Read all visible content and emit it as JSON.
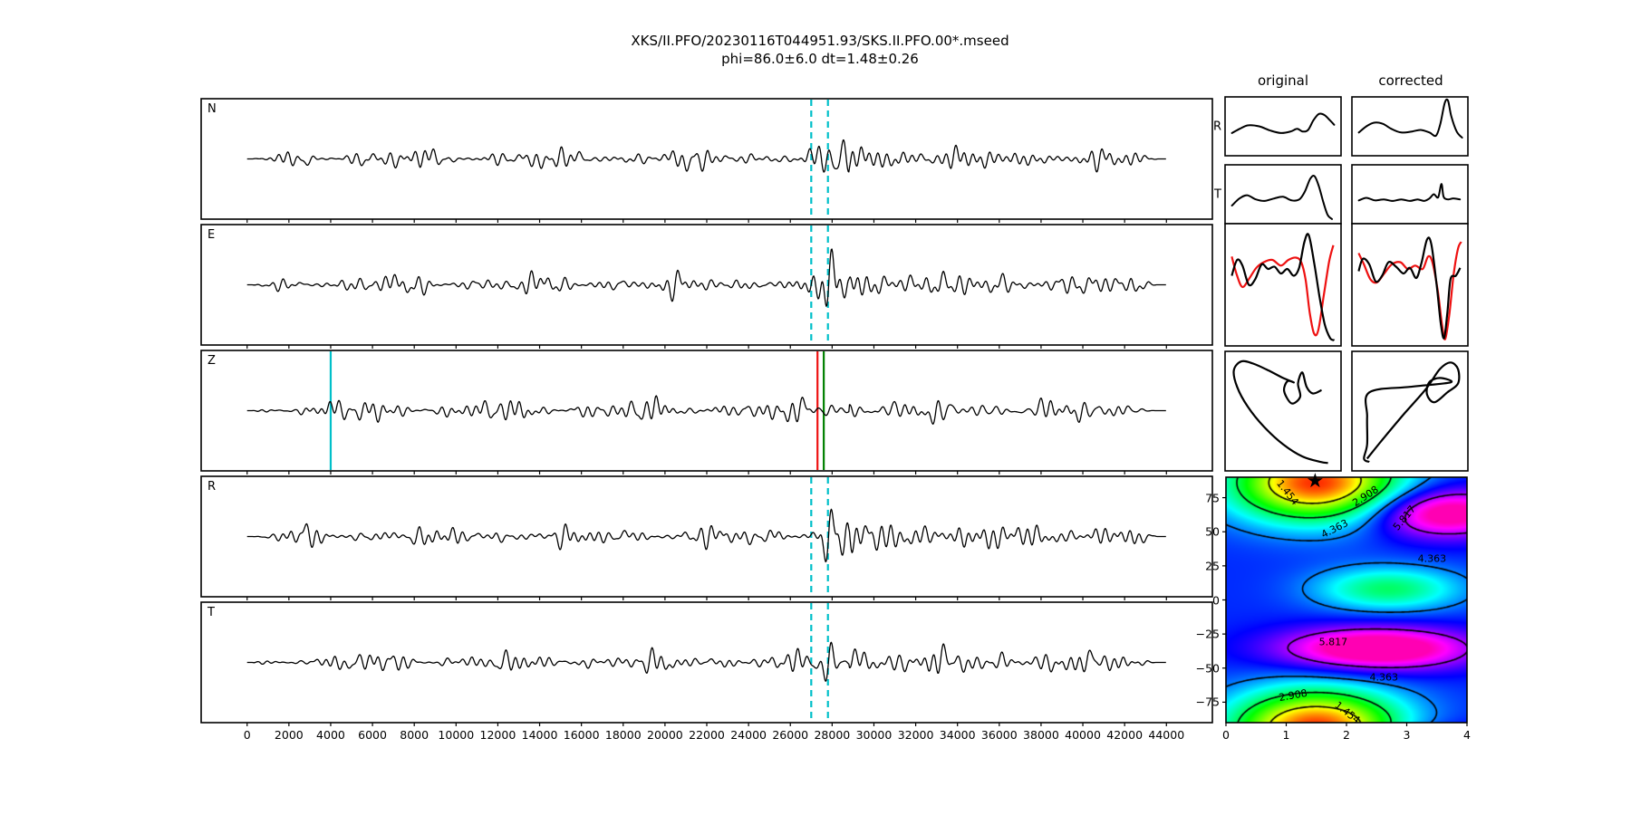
{
  "figure": {
    "title_line1": "XKS/II.PFO/20230116T044951.93/SKS.II.PFO.00*.mseed",
    "title_line2": "phi=86.0±6.0 dt=1.48±0.26",
    "background": "#ffffff"
  },
  "colors": {
    "trace": "#000000",
    "frame": "#000000",
    "cyan": "#00bfc9",
    "red": "#ee1111",
    "green": "#008000",
    "text": "#000000"
  },
  "chart_data": [
    {
      "type": "line",
      "id": "waveforms",
      "x_range": [
        0,
        44000
      ],
      "x_view": [
        -2200,
        46200
      ],
      "x_ticks": [
        0,
        2000,
        4000,
        6000,
        8000,
        10000,
        12000,
        14000,
        16000,
        18000,
        20000,
        22000,
        24000,
        26000,
        28000,
        30000,
        32000,
        34000,
        36000,
        38000,
        40000,
        42000,
        44000
      ],
      "grid": false,
      "panels": [
        {
          "label": "N",
          "seed": 11,
          "amp": {
            "base": 8,
            "burst": 9,
            "wavelet": 14,
            "coda": 5
          },
          "marker_lines": [
            {
              "x": 27000,
              "color": "cyan",
              "style": "dashed"
            },
            {
              "x": 27800,
              "color": "cyan",
              "style": "dashed"
            }
          ]
        },
        {
          "label": "E",
          "seed": 23,
          "amp": {
            "base": 8,
            "burst": 10,
            "wavelet": 40,
            "coda": 6
          },
          "marker_lines": [
            {
              "x": 27000,
              "color": "cyan",
              "style": "dashed"
            },
            {
              "x": 27800,
              "color": "cyan",
              "style": "dashed"
            }
          ]
        },
        {
          "label": "Z",
          "seed": 37,
          "amp": {
            "base": 9,
            "burst": 5,
            "wavelet": 9,
            "coda": 3
          },
          "marker_lines": [
            {
              "x": 4000,
              "color": "cyan",
              "style": "solid"
            },
            {
              "x": 27300,
              "color": "red",
              "style": "solid"
            },
            {
              "x": 27600,
              "color": "green",
              "style": "solid"
            }
          ]
        },
        {
          "label": "R",
          "seed": 51,
          "amp": {
            "base": 8,
            "burst": 10,
            "wavelet": 34,
            "coda": 6
          },
          "marker_lines": [
            {
              "x": 27000,
              "color": "cyan",
              "style": "dashed"
            },
            {
              "x": 27800,
              "color": "cyan",
              "style": "dashed"
            }
          ]
        },
        {
          "label": "T",
          "seed": 67,
          "amp": {
            "base": 8,
            "burst": 9,
            "wavelet": 24,
            "coda": 5
          },
          "show_x_labels": true,
          "marker_lines": [
            {
              "x": 27000,
              "color": "cyan",
              "style": "dashed"
            },
            {
              "x": 27800,
              "color": "cyan",
              "style": "dashed"
            }
          ]
        }
      ]
    },
    {
      "type": "line",
      "id": "pulse_panels",
      "columns": [
        "original",
        "corrected"
      ],
      "rows": [
        {
          "label": "R",
          "original": [
            [
              0.03,
              0.63
            ],
            [
              0.1,
              0.55
            ],
            [
              0.18,
              0.48
            ],
            [
              0.28,
              0.5
            ],
            [
              0.38,
              0.58
            ],
            [
              0.48,
              0.63
            ],
            [
              0.57,
              0.6
            ],
            [
              0.63,
              0.55
            ],
            [
              0.68,
              0.6
            ],
            [
              0.73,
              0.57
            ],
            [
              0.78,
              0.38
            ],
            [
              0.83,
              0.26
            ],
            [
              0.88,
              0.28
            ],
            [
              0.93,
              0.38
            ],
            [
              0.97,
              0.47
            ]
          ],
          "corrected": [
            [
              0.03,
              0.62
            ],
            [
              0.1,
              0.5
            ],
            [
              0.17,
              0.43
            ],
            [
              0.25,
              0.45
            ],
            [
              0.33,
              0.55
            ],
            [
              0.42,
              0.62
            ],
            [
              0.52,
              0.6
            ],
            [
              0.6,
              0.57
            ],
            [
              0.68,
              0.62
            ],
            [
              0.74,
              0.68
            ],
            [
              0.78,
              0.45
            ],
            [
              0.82,
              0.05
            ],
            [
              0.85,
              0.0
            ],
            [
              0.88,
              0.3
            ],
            [
              0.93,
              0.6
            ],
            [
              0.98,
              0.72
            ]
          ]
        },
        {
          "label": "T",
          "original": [
            [
              0.03,
              0.72
            ],
            [
              0.1,
              0.58
            ],
            [
              0.17,
              0.52
            ],
            [
              0.25,
              0.6
            ],
            [
              0.33,
              0.63
            ],
            [
              0.42,
              0.58
            ],
            [
              0.5,
              0.55
            ],
            [
              0.58,
              0.62
            ],
            [
              0.65,
              0.6
            ],
            [
              0.7,
              0.45
            ],
            [
              0.75,
              0.2
            ],
            [
              0.79,
              0.15
            ],
            [
              0.83,
              0.35
            ],
            [
              0.87,
              0.65
            ],
            [
              0.91,
              0.9
            ],
            [
              0.95,
              0.98
            ]
          ],
          "corrected": [
            [
              0.03,
              0.62
            ],
            [
              0.1,
              0.57
            ],
            [
              0.18,
              0.62
            ],
            [
              0.26,
              0.6
            ],
            [
              0.34,
              0.63
            ],
            [
              0.42,
              0.6
            ],
            [
              0.5,
              0.63
            ],
            [
              0.57,
              0.6
            ],
            [
              0.63,
              0.63
            ],
            [
              0.68,
              0.58
            ],
            [
              0.72,
              0.5
            ],
            [
              0.76,
              0.56
            ],
            [
              0.79,
              0.3
            ],
            [
              0.81,
              0.55
            ],
            [
              0.85,
              0.6
            ],
            [
              0.9,
              0.58
            ],
            [
              0.96,
              0.6
            ]
          ]
        }
      ]
    },
    {
      "type": "line",
      "id": "comparison_panels",
      "description": "fast (black) vs slow (red) component overlay, original and corrected",
      "original": {
        "black": [
          [
            0.02,
            0.42
          ],
          [
            0.07,
            0.28
          ],
          [
            0.12,
            0.33
          ],
          [
            0.18,
            0.5
          ],
          [
            0.24,
            0.45
          ],
          [
            0.3,
            0.32
          ],
          [
            0.36,
            0.36
          ],
          [
            0.42,
            0.34
          ],
          [
            0.48,
            0.4
          ],
          [
            0.54,
            0.36
          ],
          [
            0.6,
            0.42
          ],
          [
            0.65,
            0.35
          ],
          [
            0.7,
            0.12
          ],
          [
            0.74,
            0.06
          ],
          [
            0.79,
            0.3
          ],
          [
            0.84,
            0.6
          ],
          [
            0.89,
            0.85
          ],
          [
            0.94,
            0.97
          ],
          [
            0.98,
            0.99
          ]
        ],
        "red": [
          [
            0.02,
            0.25
          ],
          [
            0.07,
            0.42
          ],
          [
            0.12,
            0.52
          ],
          [
            0.18,
            0.45
          ],
          [
            0.25,
            0.35
          ],
          [
            0.32,
            0.3
          ],
          [
            0.4,
            0.28
          ],
          [
            0.48,
            0.33
          ],
          [
            0.55,
            0.28
          ],
          [
            0.62,
            0.26
          ],
          [
            0.67,
            0.3
          ],
          [
            0.71,
            0.45
          ],
          [
            0.75,
            0.75
          ],
          [
            0.79,
            0.93
          ],
          [
            0.83,
            0.9
          ],
          [
            0.88,
            0.6
          ],
          [
            0.93,
            0.3
          ],
          [
            0.97,
            0.15
          ]
        ]
      },
      "corrected": {
        "black": [
          [
            0.02,
            0.38
          ],
          [
            0.06,
            0.27
          ],
          [
            0.12,
            0.32
          ],
          [
            0.18,
            0.47
          ],
          [
            0.24,
            0.42
          ],
          [
            0.3,
            0.3
          ],
          [
            0.37,
            0.34
          ],
          [
            0.44,
            0.4
          ],
          [
            0.5,
            0.35
          ],
          [
            0.56,
            0.44
          ],
          [
            0.61,
            0.3
          ],
          [
            0.66,
            0.1
          ],
          [
            0.7,
            0.14
          ],
          [
            0.75,
            0.5
          ],
          [
            0.79,
            0.85
          ],
          [
            0.82,
            0.97
          ],
          [
            0.85,
            0.75
          ],
          [
            0.88,
            0.45
          ],
          [
            0.93,
            0.42
          ],
          [
            0.97,
            0.35
          ]
        ],
        "red": [
          [
            0.02,
            0.22
          ],
          [
            0.07,
            0.32
          ],
          [
            0.13,
            0.45
          ],
          [
            0.19,
            0.48
          ],
          [
            0.26,
            0.4
          ],
          [
            0.33,
            0.32
          ],
          [
            0.41,
            0.3
          ],
          [
            0.48,
            0.36
          ],
          [
            0.55,
            0.33
          ],
          [
            0.62,
            0.36
          ],
          [
            0.67,
            0.25
          ],
          [
            0.71,
            0.3
          ],
          [
            0.76,
            0.55
          ],
          [
            0.8,
            0.85
          ],
          [
            0.83,
            0.98
          ],
          [
            0.87,
            0.75
          ],
          [
            0.91,
            0.4
          ],
          [
            0.95,
            0.18
          ],
          [
            0.98,
            0.12
          ]
        ]
      }
    },
    {
      "type": "line",
      "id": "particle_motion",
      "original": [
        [
          0.86,
          0.31
        ],
        [
          0.78,
          0.34
        ],
        [
          0.72,
          0.28
        ],
        [
          0.68,
          0.15
        ],
        [
          0.64,
          0.25
        ],
        [
          0.66,
          0.37
        ],
        [
          0.58,
          0.43
        ],
        [
          0.51,
          0.32
        ],
        [
          0.54,
          0.23
        ],
        [
          0.6,
          0.24
        ],
        [
          0.5,
          0.2
        ],
        [
          0.36,
          0.13
        ],
        [
          0.22,
          0.07
        ],
        [
          0.11,
          0.05
        ],
        [
          0.04,
          0.13
        ],
        [
          0.07,
          0.28
        ],
        [
          0.17,
          0.46
        ],
        [
          0.32,
          0.64
        ],
        [
          0.5,
          0.8
        ],
        [
          0.68,
          0.91
        ],
        [
          0.85,
          0.96
        ],
        [
          0.92,
          0.97
        ]
      ],
      "corrected": [
        [
          0.1,
          0.93
        ],
        [
          0.25,
          0.75
        ],
        [
          0.45,
          0.52
        ],
        [
          0.65,
          0.3
        ],
        [
          0.78,
          0.12
        ],
        [
          0.88,
          0.06
        ],
        [
          0.95,
          0.12
        ],
        [
          0.95,
          0.25
        ],
        [
          0.85,
          0.33
        ],
        [
          0.73,
          0.42
        ],
        [
          0.66,
          0.35
        ],
        [
          0.68,
          0.24
        ],
        [
          0.78,
          0.2
        ],
        [
          0.88,
          0.24
        ],
        [
          0.5,
          0.28
        ],
        [
          0.12,
          0.33
        ],
        [
          0.1,
          0.55
        ],
        [
          0.1,
          0.8
        ],
        [
          0.07,
          0.93
        ],
        [
          0.12,
          0.96
        ]
      ]
    },
    {
      "type": "heatmap",
      "id": "energy_map",
      "x_range": [
        0,
        4
      ],
      "y_range": [
        -90,
        90
      ],
      "x_ticks": [
        0,
        1,
        2,
        3,
        4
      ],
      "y_ticks": [
        75,
        50,
        25,
        0,
        -25,
        -50,
        -75
      ],
      "contour_levels": [
        1.454,
        2.908,
        4.363,
        5.817
      ],
      "star": {
        "dt": 1.48,
        "phi": 86.0
      },
      "colormap": "hsv-like rainbow, red=low magenta=high",
      "vmax": 7.27,
      "hue_per_unit": 48,
      "hue_max": 318,
      "model": {
        "base": 4.8,
        "terms": [
          {
            "amp": -4.6,
            "cx": 1.5,
            "sx": 1.4,
            "cy": 86,
            "sy": 28
          },
          {
            "amp": 2.3,
            "cx": 3.6,
            "sx": 1.2,
            "cy": 64,
            "sy": 18
          },
          {
            "amp": 2.5,
            "cx": 2.5,
            "sx": 1.6,
            "cy": -36,
            "sy": 16
          },
          {
            "amp": -1.8,
            "cx": 2.7,
            "sx": 1.2,
            "cy": 8,
            "sy": 16
          }
        ]
      },
      "contour_labels": [
        {
          "text": "1.454",
          "dt": 1.02,
          "phi": 79,
          "rot": 52
        },
        {
          "text": "2.908",
          "dt": 2.32,
          "phi": 76,
          "rot": -33
        },
        {
          "text": "4.363",
          "dt": 1.81,
          "phi": 52,
          "rot": -27
        },
        {
          "text": "5.817",
          "dt": 2.96,
          "phi": 60,
          "rot": -50
        },
        {
          "text": "4.363",
          "dt": 3.42,
          "phi": 30,
          "rot": 0
        },
        {
          "text": "5.817",
          "dt": 1.78,
          "phi": -31,
          "rot": 0
        },
        {
          "text": "4.363",
          "dt": 2.62,
          "phi": -57,
          "rot": 0
        },
        {
          "text": "2.908",
          "dt": 1.12,
          "phi": -70,
          "rot": -10
        },
        {
          "text": "1.454",
          "dt": 2.02,
          "phi": -83,
          "rot": 38
        }
      ]
    }
  ]
}
